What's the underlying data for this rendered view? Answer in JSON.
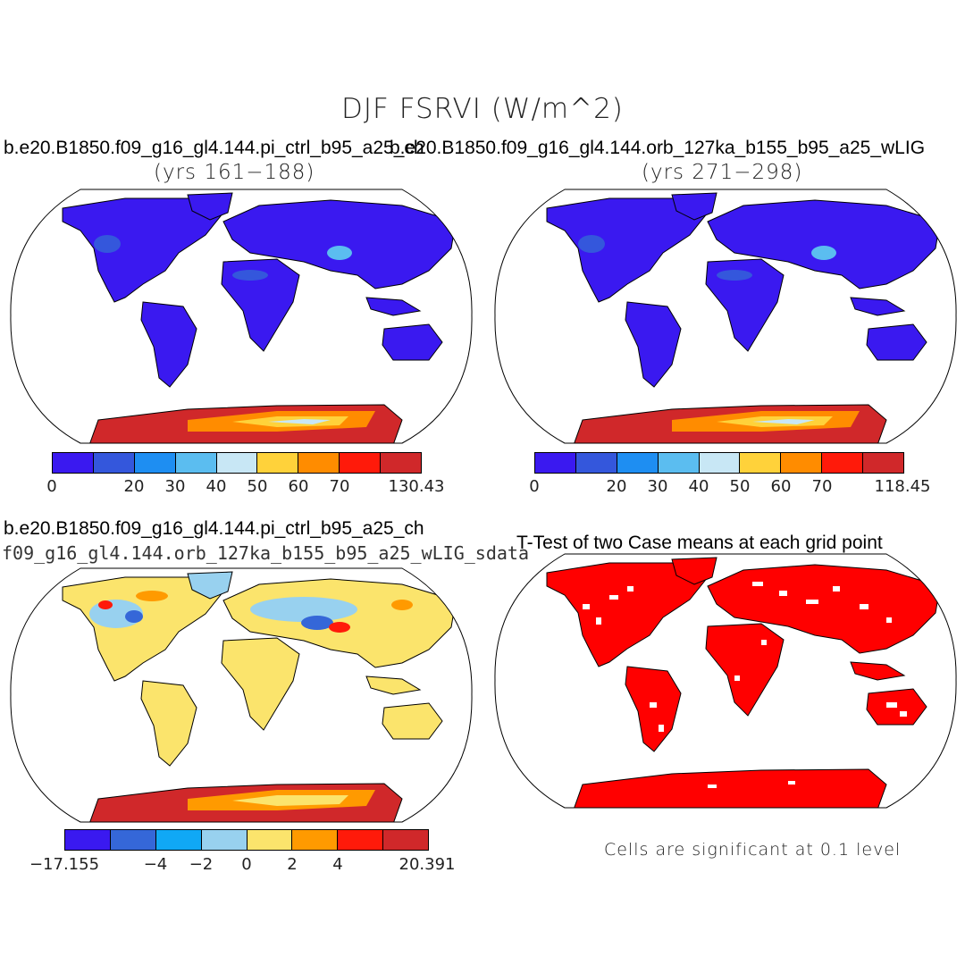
{
  "page": {
    "title": "DJF FSRVI (W/m^2)"
  },
  "panels": [
    {
      "id": "case1",
      "case_title": "b.e20.B1850.f09_g16_gl4.144.pi_ctrl_b95_a25_ch",
      "years": "(yrs 161−188)",
      "colorbar": {
        "colors": [
          "#3a19f0",
          "#3457dc",
          "#1e8ef2",
          "#5bbdf0",
          "#c8e7f5",
          "#ffd23a",
          "#ff8c00",
          "#ff1a0a",
          "#d0282a"
        ],
        "tick_labels": [
          "0",
          "20",
          "30",
          "40",
          "50",
          "60",
          "70",
          "130.43"
        ]
      }
    },
    {
      "id": "case2",
      "case_title": "b.e20.B1850.f09_g16_gl4.144.orb_127ka_b155_b95_a25_wLIG",
      "years": "(yrs 271−298)",
      "colorbar": {
        "colors": [
          "#3a19f0",
          "#3457dc",
          "#1e8ef2",
          "#5bbdf0",
          "#c8e7f5",
          "#ffd23a",
          "#ff8c00",
          "#ff1a0a",
          "#d0282a"
        ],
        "tick_labels": [
          "0",
          "20",
          "30",
          "40",
          "50",
          "60",
          "70",
          "118.45"
        ]
      }
    },
    {
      "id": "difference",
      "case_title": "b.e20.B1850.f09_g16_gl4.144.pi_ctrl_b95_a25_ch",
      "subtitle": "f09_g16_gl4.144.orb_127ka_b155_b95_a25_wLIG_sdata",
      "colorbar": {
        "colors": [
          "#3a19f0",
          "#3567d8",
          "#10a8f5",
          "#98d1ef",
          "#fbe46c",
          "#ff9a00",
          "#ff1a0a",
          "#d0282a"
        ],
        "tick_labels": [
          "−17.155",
          "−4",
          "−2",
          "0",
          "2",
          "4",
          "20.391"
        ]
      }
    },
    {
      "id": "ttest",
      "case_title": "T-Test of two Case means at each grid point",
      "note": "Cells are significant at 0.1 level"
    }
  ]
}
